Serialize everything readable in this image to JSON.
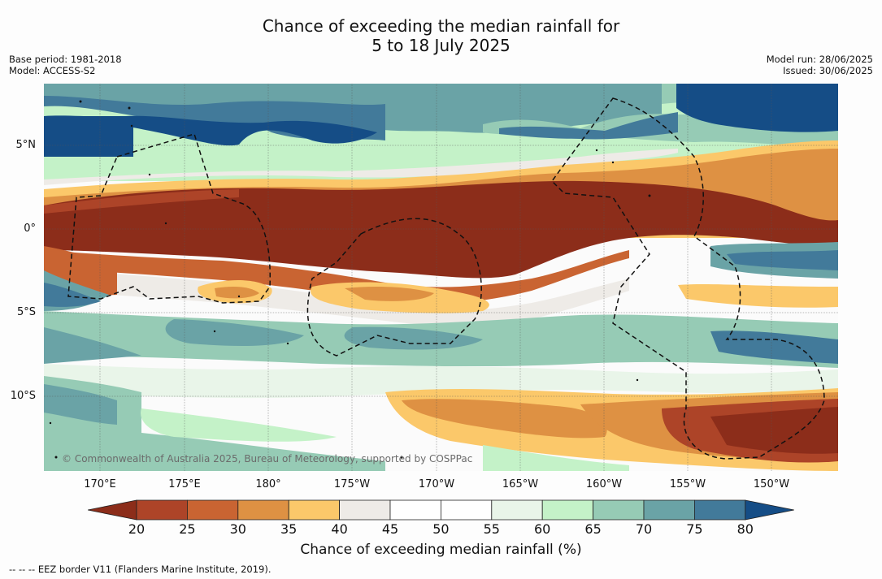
{
  "title": {
    "line1": "Chance of exceeding the median rainfall for",
    "line2": "5 to 18 July 2025"
  },
  "meta_left": {
    "base_period": "Base period: 1981-2018",
    "model": "Model: ACCESS-S2"
  },
  "meta_right": {
    "model_run": "Model run: 28/06/2025",
    "issued": "Issued: 30/06/2025"
  },
  "map": {
    "lat_labels": [
      "5°N",
      "0°",
      "5°S",
      "10°S"
    ],
    "lon_labels": [
      "170°E",
      "175°E",
      "180°",
      "175°W",
      "170°W",
      "165°W",
      "160°W",
      "155°W",
      "150°W"
    ],
    "copyright": "© Commonwealth of Australia 2025, Bureau of Meteorology, supported by COSPPac"
  },
  "legend": {
    "label": "Chance of exceeding median rainfall (%)",
    "ticks": [
      "20",
      "25",
      "30",
      "35",
      "40",
      "45",
      "50",
      "55",
      "60",
      "65",
      "70",
      "75",
      "80"
    ],
    "colors": [
      "#8c2d1a",
      "#ad4428",
      "#c96432",
      "#de9143",
      "#fbc86a",
      "#eeebe7",
      "#ffffff",
      "#ffffff",
      "#e9f5e9",
      "#c4f2c8",
      "#96cbb5",
      "#6aa3a6",
      "#427a9a",
      "#154d86"
    ]
  },
  "footer": "--  --  -- EEZ border V11 (Flanders Marine Institute, 2019)."
}
